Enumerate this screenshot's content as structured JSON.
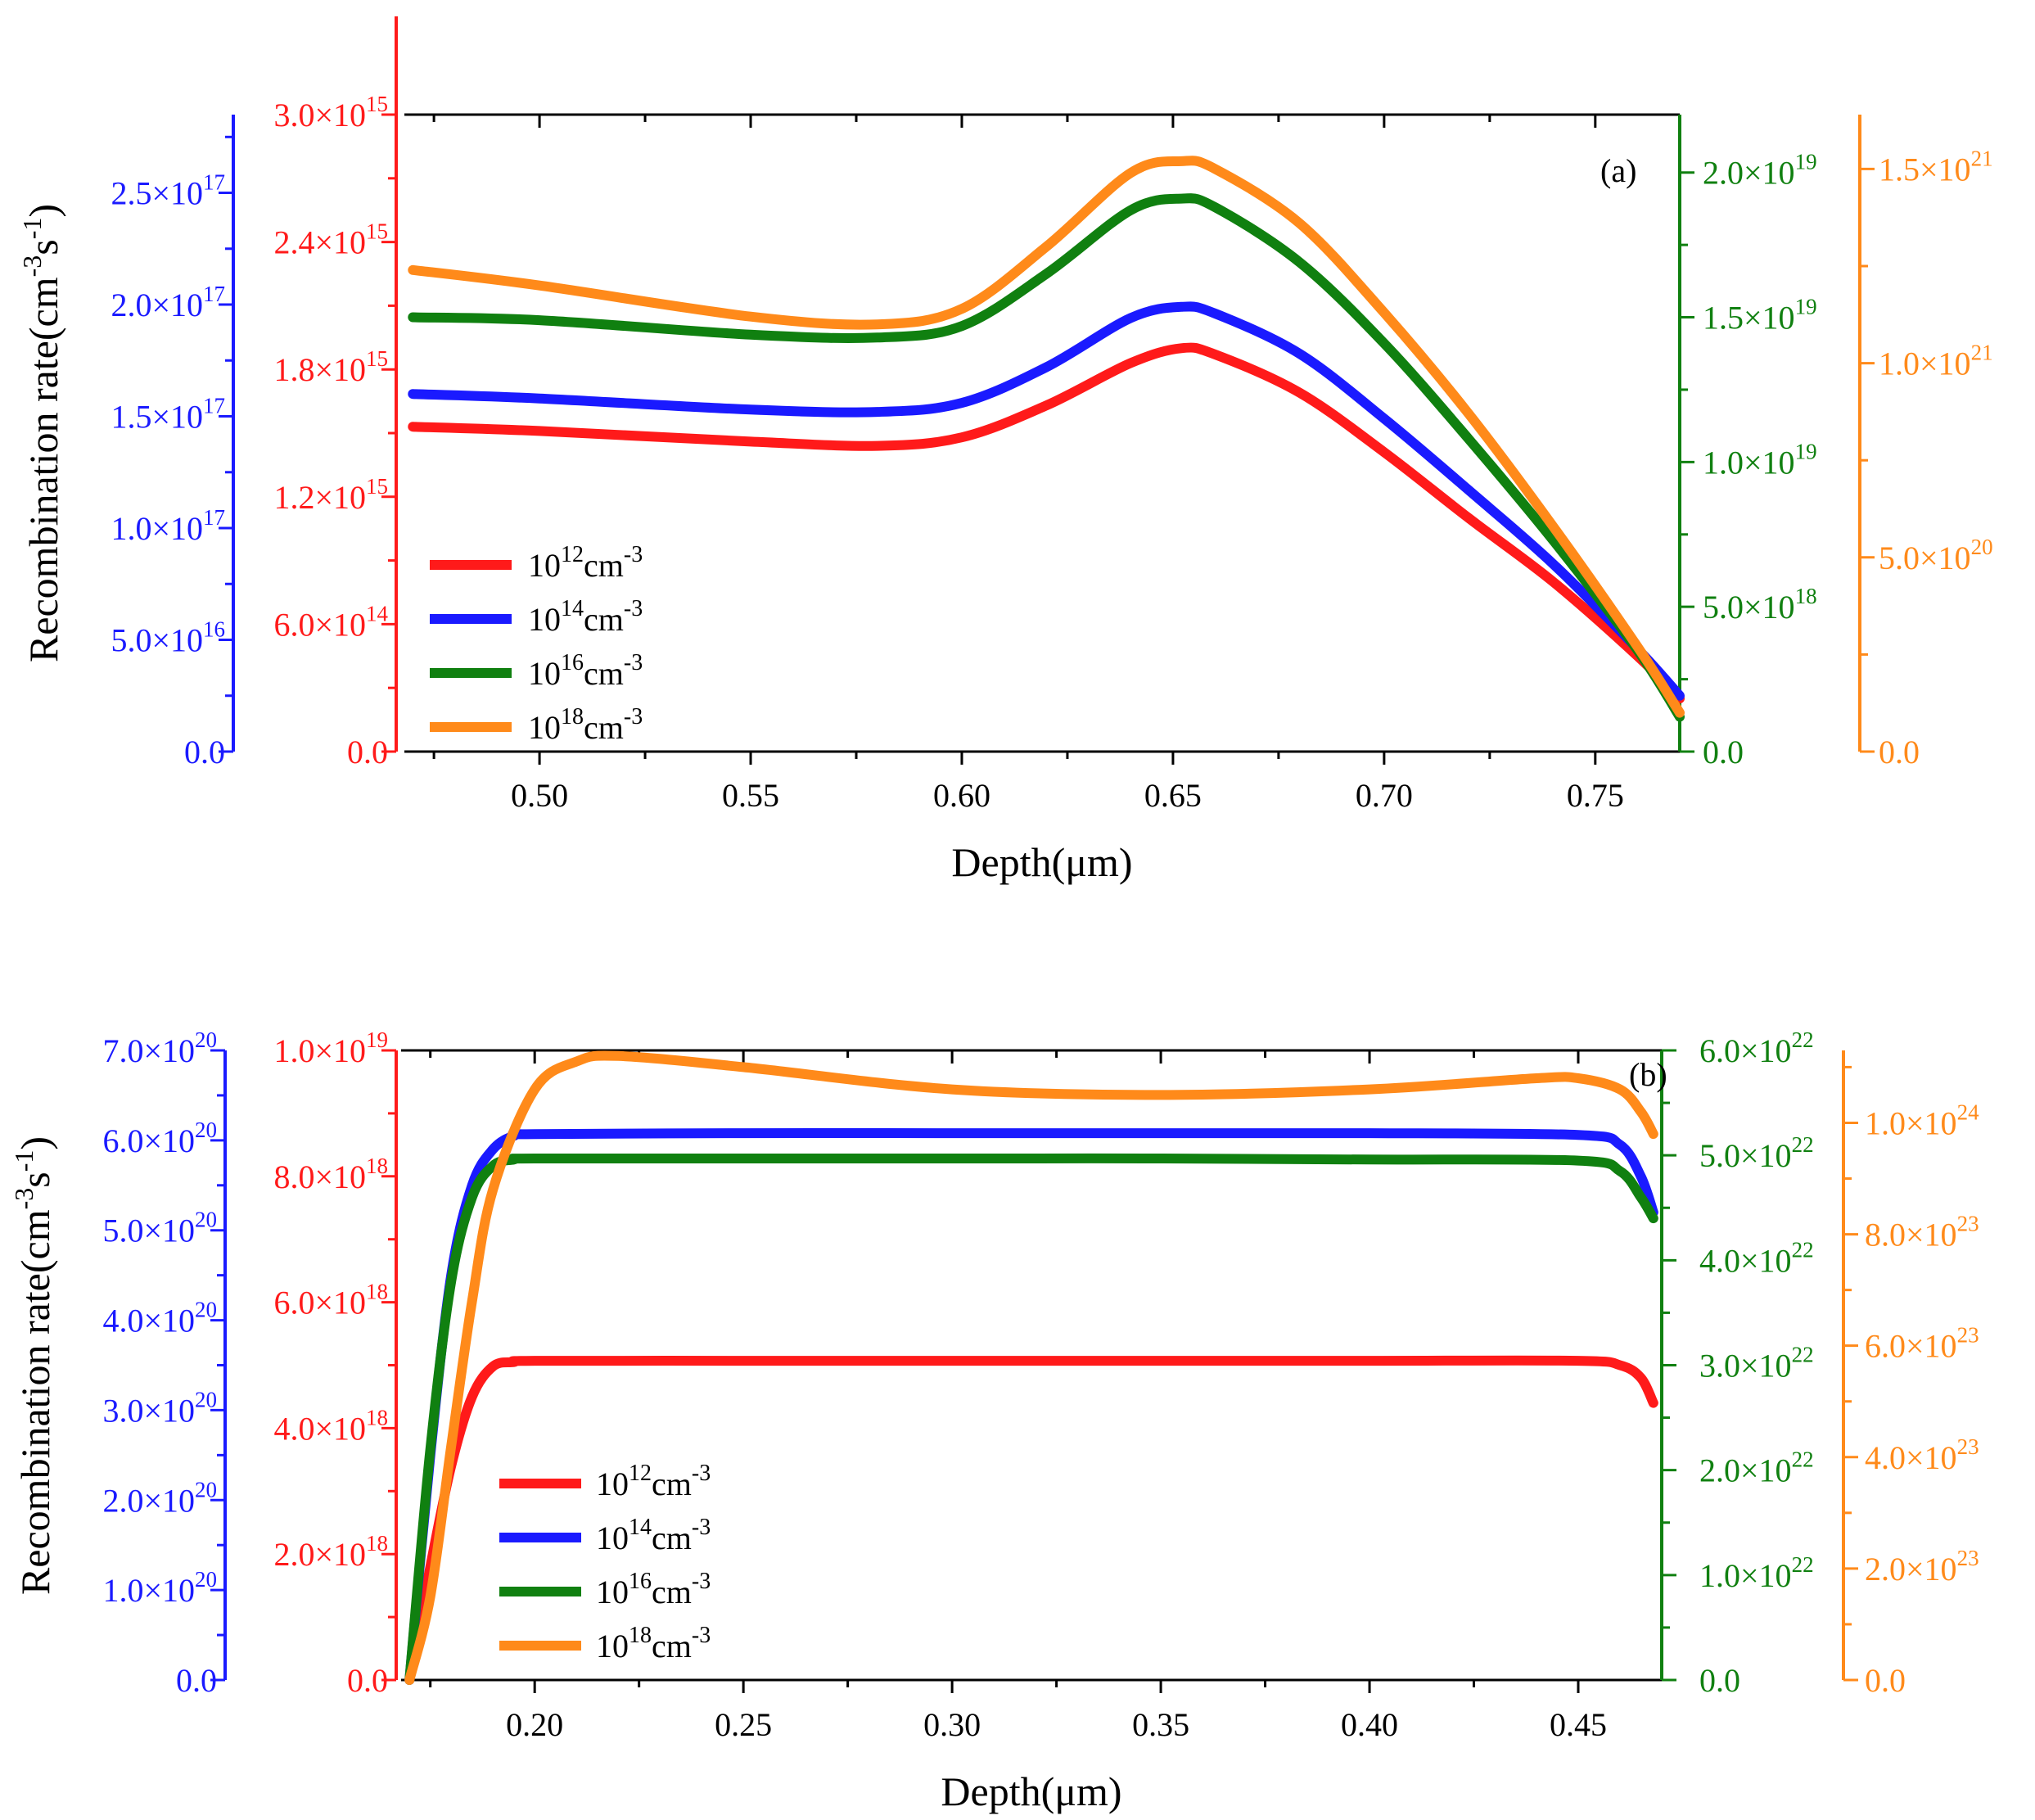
{
  "colors": {
    "red": "#ff1a1a",
    "blue": "#1a1aff",
    "green": "#108010",
    "orange": "#ff8a1a",
    "black": "#000000"
  },
  "chart_data": [
    {
      "type": "line",
      "panel": "(a)",
      "xlabel": "Depth(μm)",
      "ylabel": "Recombination rate(cm-3s-1)",
      "ylabel_parts": {
        "base": "Recombination rate(cm",
        "exp1": "-3",
        "mid": "s",
        "exp2": "-1",
        "close": ")"
      },
      "xlim": [
        0.468,
        0.77
      ],
      "xticks": [
        0.5,
        0.55,
        0.6,
        0.65,
        0.7,
        0.75
      ],
      "xtick_labels": [
        "0.50",
        "0.55",
        "0.60",
        "0.65",
        "0.70",
        "0.75"
      ],
      "axes": [
        {
          "color": "blue",
          "side": "left",
          "ylim": [
            0,
            2.85e+17
          ],
          "ticks": [
            {
              "value": 0,
              "mant": "0.0",
              "exp": ""
            },
            {
              "value": 5e+16,
              "mant": "5.0×10",
              "exp": "16"
            },
            {
              "value": 1e+17,
              "mant": "1.0×10",
              "exp": "17"
            },
            {
              "value": 1.5e+17,
              "mant": "1.5×10",
              "exp": "17"
            },
            {
              "value": 2e+17,
              "mant": "2.0×10",
              "exp": "17"
            },
            {
              "value": 2.5e+17,
              "mant": "2.5×10",
              "exp": "17"
            }
          ]
        },
        {
          "color": "red",
          "side": "left",
          "ylim": [
            0,
            3000000000000000.0
          ],
          "ticks": [
            {
              "value": 0,
              "mant": "0.0",
              "exp": ""
            },
            {
              "value": 600000000000000.0,
              "mant": "6.0×10",
              "exp": "14"
            },
            {
              "value": 1200000000000000.0,
              "mant": "1.2×10",
              "exp": "15"
            },
            {
              "value": 1800000000000000.0,
              "mant": "1.8×10",
              "exp": "15"
            },
            {
              "value": 2400000000000000.0,
              "mant": "2.4×10",
              "exp": "15"
            },
            {
              "value": 3000000000000000.0,
              "mant": "3.0×10",
              "exp": "15"
            }
          ]
        },
        {
          "color": "green",
          "side": "right",
          "ylim": [
            0,
            2.2e+19
          ],
          "ticks": [
            {
              "value": 0,
              "mant": "0.0",
              "exp": ""
            },
            {
              "value": 5e+18,
              "mant": "5.0×10",
              "exp": "18"
            },
            {
              "value": 1e+19,
              "mant": "1.0×10",
              "exp": "19"
            },
            {
              "value": 1.5e+19,
              "mant": "1.5×10",
              "exp": "19"
            },
            {
              "value": 2e+19,
              "mant": "2.0×10",
              "exp": "19"
            }
          ]
        },
        {
          "color": "orange",
          "side": "right",
          "ylim": [
            0,
            1.64e+21
          ],
          "ticks": [
            {
              "value": 0,
              "mant": "0.0",
              "exp": ""
            },
            {
              "value": 5e+20,
              "mant": "5.0×10",
              "exp": "20"
            },
            {
              "value": 1e+21,
              "mant": "1.0×10",
              "exp": "21"
            },
            {
              "value": 1.5e+21,
              "mant": "1.5×10",
              "exp": "21"
            }
          ]
        }
      ],
      "series": [
        {
          "name": "10^12 cm^-3",
          "label_base": "10",
          "label_exp": "12",
          "unit": "cm",
          "unit_exp": "-3",
          "color": "red",
          "axis": 1,
          "x": [
            0.47,
            0.5,
            0.55,
            0.58,
            0.6,
            0.62,
            0.64,
            0.652,
            0.66,
            0.68,
            0.7,
            0.72,
            0.74,
            0.76,
            0.77
          ],
          "y": [
            1530000000000000.0,
            1510000000000000.0,
            1460000000000000.0,
            1440000000000000.0,
            1480000000000000.0,
            1630000000000000.0,
            1830000000000000.0,
            1900000000000000.0,
            1870000000000000.0,
            1690000000000000.0,
            1410000000000000.0,
            1100000000000000.0,
            800000000000000.0,
            450000000000000.0,
            250000000000000.0
          ]
        },
        {
          "name": "10^14 cm^-3",
          "label_base": "10",
          "label_exp": "14",
          "unit": "cm",
          "unit_exp": "-3",
          "color": "blue",
          "axis": 0,
          "x": [
            0.47,
            0.5,
            0.55,
            0.58,
            0.6,
            0.62,
            0.64,
            0.652,
            0.66,
            0.68,
            0.7,
            0.72,
            0.74,
            0.76,
            0.77
          ],
          "y": [
            1.6e+17,
            1.58e+17,
            1.53e+17,
            1.52e+17,
            1.56e+17,
            1.72e+17,
            1.94e+17,
            1.99e+17,
            1.96e+17,
            1.78e+17,
            1.49e+17,
            1.17e+17,
            8.4e+16,
            4.6e+16,
            2.5e+16
          ]
        },
        {
          "name": "10^16 cm^-3",
          "label_base": "10",
          "label_exp": "16",
          "unit": "cm",
          "unit_exp": "-3",
          "color": "green",
          "axis": 2,
          "x": [
            0.47,
            0.5,
            0.55,
            0.58,
            0.6,
            0.62,
            0.64,
            0.652,
            0.66,
            0.68,
            0.7,
            0.72,
            0.74,
            0.76,
            0.77
          ],
          "y": [
            1.5e+19,
            1.49e+19,
            1.44e+19,
            1.43e+19,
            1.47e+19,
            1.65e+19,
            1.87e+19,
            1.91e+19,
            1.88e+19,
            1.69e+19,
            1.41e+19,
            1.08e+19,
            7.3e+18,
            3.5e+18,
            1.2e+18
          ]
        },
        {
          "name": "10^18 cm^-3",
          "label_base": "10",
          "label_exp": "18",
          "unit": "cm",
          "unit_exp": "-3",
          "color": "orange",
          "axis": 3,
          "x": [
            0.47,
            0.5,
            0.55,
            0.58,
            0.6,
            0.62,
            0.64,
            0.652,
            0.66,
            0.68,
            0.7,
            0.72,
            0.74,
            0.76,
            0.77
          ],
          "y": [
            1.24e+21,
            1.2e+21,
            1.12e+21,
            1.1e+21,
            1.14e+21,
            1.3e+21,
            1.49e+21,
            1.52e+21,
            1.5e+21,
            1.36e+21,
            1.13e+21,
            8.7e+20,
            5.8e+20,
            2.7e+20,
            1e+20
          ]
        }
      ]
    },
    {
      "type": "line",
      "panel": "(b)",
      "xlabel": "Depth(μm)",
      "ylabel": "Recombination rate(cm-3s-1)",
      "ylabel_parts": {
        "base": "Recombination rate(cm",
        "exp1": "-3",
        "mid": "s",
        "exp2": "-1",
        "close": ")"
      },
      "xlim": [
        0.168,
        0.47
      ],
      "xticks": [
        0.2,
        0.25,
        0.3,
        0.35,
        0.4,
        0.45
      ],
      "xtick_labels": [
        "0.20",
        "0.25",
        "0.30",
        "0.35",
        "0.40",
        "0.45"
      ],
      "axes": [
        {
          "color": "blue",
          "side": "left",
          "ylim": [
            0,
            7e+20
          ],
          "ticks": [
            {
              "value": 0,
              "mant": "0.0",
              "exp": ""
            },
            {
              "value": 1e+20,
              "mant": "1.0×10",
              "exp": "20"
            },
            {
              "value": 2e+20,
              "mant": "2.0×10",
              "exp": "20"
            },
            {
              "value": 3e+20,
              "mant": "3.0×10",
              "exp": "20"
            },
            {
              "value": 4e+20,
              "mant": "4.0×10",
              "exp": "20"
            },
            {
              "value": 5e+20,
              "mant": "5.0×10",
              "exp": "20"
            },
            {
              "value": 6e+20,
              "mant": "6.0×10",
              "exp": "20"
            },
            {
              "value": 7e+20,
              "mant": "7.0×10",
              "exp": "20"
            }
          ]
        },
        {
          "color": "red",
          "side": "left",
          "ylim": [
            0,
            1e+19
          ],
          "ticks": [
            {
              "value": 0,
              "mant": "0.0",
              "exp": ""
            },
            {
              "value": 2e+18,
              "mant": "2.0×10",
              "exp": "18"
            },
            {
              "value": 4e+18,
              "mant": "4.0×10",
              "exp": "18"
            },
            {
              "value": 6e+18,
              "mant": "6.0×10",
              "exp": "18"
            },
            {
              "value": 8e+18,
              "mant": "8.0×10",
              "exp": "18"
            },
            {
              "value": 1e+19,
              "mant": "1.0×10",
              "exp": "19"
            }
          ]
        },
        {
          "color": "green",
          "side": "right",
          "ylim": [
            0,
            6e+22
          ],
          "ticks": [
            {
              "value": 0,
              "mant": "0.0",
              "exp": ""
            },
            {
              "value": 1e+22,
              "mant": "1.0×10",
              "exp": "22"
            },
            {
              "value": 2e+22,
              "mant": "2.0×10",
              "exp": "22"
            },
            {
              "value": 3e+22,
              "mant": "3.0×10",
              "exp": "22"
            },
            {
              "value": 4e+22,
              "mant": "4.0×10",
              "exp": "22"
            },
            {
              "value": 5e+22,
              "mant": "5.0×10",
              "exp": "22"
            },
            {
              "value": 6e+22,
              "mant": "6.0×10",
              "exp": "22"
            }
          ]
        },
        {
          "color": "orange",
          "side": "right",
          "ylim": [
            0,
            1.13e+24
          ],
          "ticks": [
            {
              "value": 0,
              "mant": "0.0",
              "exp": ""
            },
            {
              "value": 2e+23,
              "mant": "2.0×10",
              "exp": "23"
            },
            {
              "value": 4e+23,
              "mant": "4.0×10",
              "exp": "23"
            },
            {
              "value": 6e+23,
              "mant": "6.0×10",
              "exp": "23"
            },
            {
              "value": 8e+23,
              "mant": "8.0×10",
              "exp": "23"
            },
            {
              "value": 1e+24,
              "mant": "1.0×10",
              "exp": "24"
            }
          ]
        }
      ],
      "series": [
        {
          "name": "10^12 cm^-3",
          "label_base": "10",
          "label_exp": "12",
          "unit": "cm",
          "unit_exp": "-3",
          "color": "red",
          "axis": 1,
          "x": [
            0.17,
            0.175,
            0.18,
            0.185,
            0.19,
            0.195,
            0.2,
            0.25,
            0.3,
            0.35,
            0.4,
            0.45,
            0.46,
            0.465,
            0.468
          ],
          "y": [
            0,
            1.8e+18,
            3.4e+18,
            4.5e+18,
            4.98e+18,
            5.05e+18,
            5.07e+18,
            5.07e+18,
            5.07e+18,
            5.07e+18,
            5.07e+18,
            5.07e+18,
            5e+18,
            4.8e+18,
            4.4e+18
          ]
        },
        {
          "name": "10^14 cm^-3",
          "label_base": "10",
          "label_exp": "14",
          "unit": "cm",
          "unit_exp": "-3",
          "color": "blue",
          "axis": 0,
          "x": [
            0.17,
            0.175,
            0.18,
            0.185,
            0.19,
            0.195,
            0.2,
            0.25,
            0.3,
            0.35,
            0.4,
            0.45,
            0.46,
            0.465,
            0.468
          ],
          "y": [
            0,
            2.5e+20,
            4.5e+20,
            5.5e+20,
            5.9e+20,
            6.05e+20,
            6.07e+20,
            6.08e+20,
            6.08e+20,
            6.08e+20,
            6.08e+20,
            6.06e+20,
            5.95e+20,
            5.6e+20,
            5.2e+20
          ]
        },
        {
          "name": "10^16 cm^-3",
          "label_base": "10",
          "label_exp": "16",
          "unit": "cm",
          "unit_exp": "-3",
          "color": "green",
          "axis": 2,
          "x": [
            0.17,
            0.175,
            0.18,
            0.185,
            0.19,
            0.195,
            0.2,
            0.25,
            0.3,
            0.35,
            0.4,
            0.45,
            0.46,
            0.465,
            0.468
          ],
          "y": [
            0,
            2.2e+22,
            3.8e+22,
            4.6e+22,
            4.9e+22,
            4.96e+22,
            4.97e+22,
            4.97e+22,
            4.97e+22,
            4.97e+22,
            4.96e+22,
            4.95e+22,
            4.85e+22,
            4.6e+22,
            4.4e+22
          ]
        },
        {
          "name": "10^18 cm^-3",
          "label_base": "10",
          "label_exp": "18",
          "unit": "cm",
          "unit_exp": "-3",
          "color": "orange",
          "axis": 3,
          "x": [
            0.17,
            0.175,
            0.18,
            0.185,
            0.19,
            0.2,
            0.21,
            0.22,
            0.25,
            0.3,
            0.35,
            0.4,
            0.44,
            0.45,
            0.46,
            0.465,
            0.468
          ],
          "y": [
            0,
            1.5e+23,
            4.2e+23,
            6.8e+23,
            8.8e+23,
            1.06e+24,
            1.11e+24,
            1.12e+24,
            1.1e+24,
            1.06e+24,
            1.05e+24,
            1.06e+24,
            1.08e+24,
            1.08e+24,
            1.06e+24,
            1.02e+24,
            9.8e+23
          ]
        }
      ]
    }
  ]
}
